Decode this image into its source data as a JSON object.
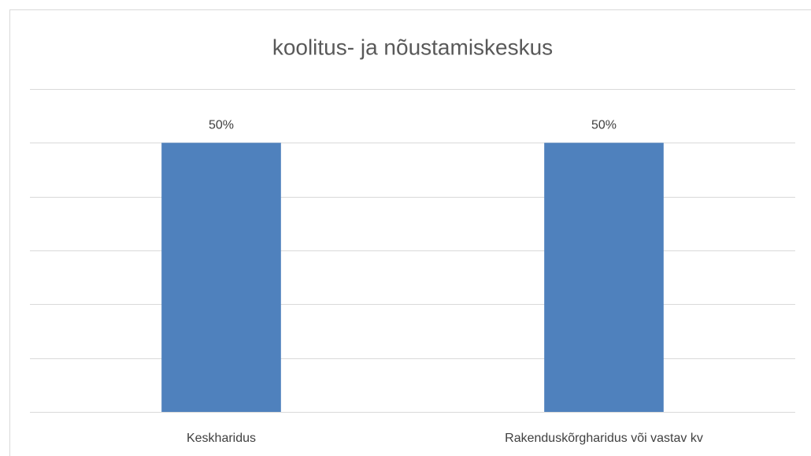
{
  "chart_data": {
    "type": "bar",
    "title": "koolitus- ja nõustamiskeskus",
    "categories": [
      "Keskharidus",
      "Rakenduskõrgharidus või vastav kv"
    ],
    "values": [
      50,
      50
    ],
    "value_labels": [
      "50%",
      "50%"
    ],
    "color": "#4f81bd",
    "ylim": [
      0,
      60
    ],
    "yticks": [
      0,
      10,
      20,
      30,
      40,
      50,
      60
    ],
    "grid": true
  }
}
